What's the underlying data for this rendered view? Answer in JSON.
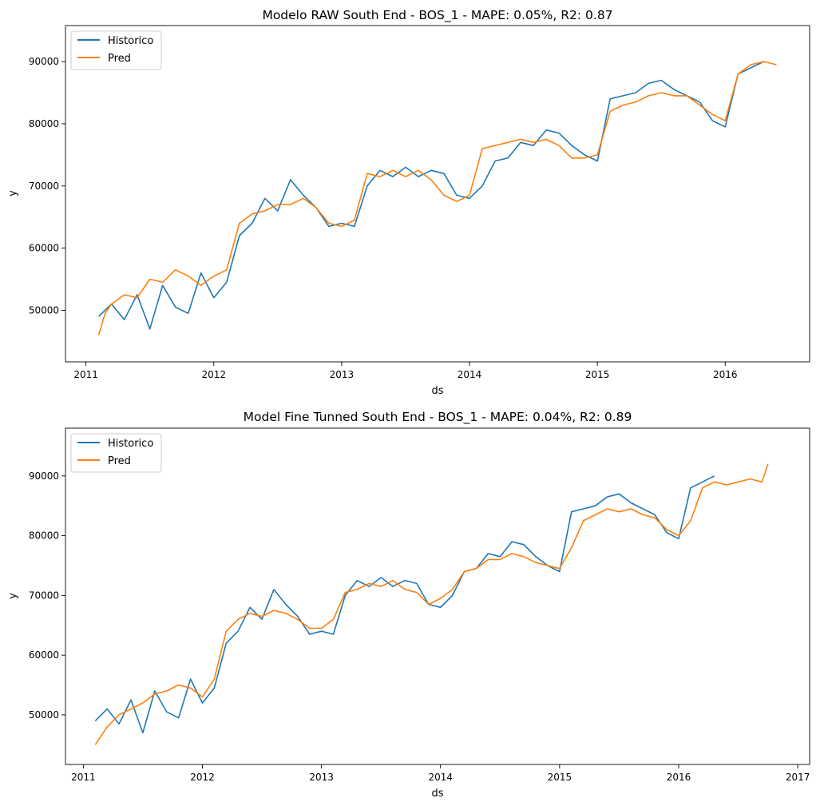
{
  "colors": {
    "historico": "#1f77b4",
    "pred": "#ff7f0e",
    "frame": "#000000",
    "background": "#ffffff"
  },
  "chart_data": [
    {
      "type": "line",
      "title": "Modelo RAW South End - BOS_1 - MAPE: 0.05%, R2: 0.87",
      "xlabel": "ds",
      "ylabel": "y",
      "xlim": [
        2010.84,
        2016.66
      ],
      "ylim": [
        41700,
        95800
      ],
      "x_ticks": [
        2011,
        2012,
        2013,
        2014,
        2015,
        2016
      ],
      "x_tick_labels": [
        "2011",
        "2012",
        "2013",
        "2014",
        "2015",
        "2016"
      ],
      "y_ticks": [
        50000,
        60000,
        70000,
        80000,
        90000
      ],
      "y_tick_labels": [
        "50000",
        "60000",
        "70000",
        "80000",
        "90000"
      ],
      "grid": false,
      "legend_position": "top-left",
      "series": [
        {
          "name": "Historico",
          "color": "#1f77b4",
          "x": [
            2011.1,
            2011.2,
            2011.3,
            2011.4,
            2011.5,
            2011.6,
            2011.7,
            2011.8,
            2011.9,
            2012.0,
            2012.1,
            2012.2,
            2012.3,
            2012.4,
            2012.5,
            2012.6,
            2012.7,
            2012.8,
            2012.9,
            2013.0,
            2013.1,
            2013.2,
            2013.3,
            2013.4,
            2013.5,
            2013.6,
            2013.7,
            2013.8,
            2013.9,
            2014.0,
            2014.1,
            2014.2,
            2014.3,
            2014.4,
            2014.5,
            2014.6,
            2014.7,
            2014.8,
            2014.9,
            2015.0,
            2015.1,
            2015.2,
            2015.3,
            2015.4,
            2015.5,
            2015.6,
            2015.7,
            2015.8,
            2015.9,
            2016.0,
            2016.1,
            2016.2,
            2016.3
          ],
          "y": [
            49000,
            51000,
            48500,
            52500,
            47000,
            54000,
            50500,
            49500,
            56000,
            52000,
            54500,
            62000,
            64000,
            68000,
            66000,
            71000,
            68500,
            66500,
            63500,
            64000,
            63500,
            70000,
            72500,
            71500,
            73000,
            71500,
            72500,
            72000,
            68500,
            68000,
            70000,
            74000,
            74500,
            77000,
            76500,
            79000,
            78500,
            76500,
            75000,
            74000,
            84000,
            84500,
            85000,
            86500,
            87000,
            85500,
            84500,
            83500,
            80500,
            79500,
            88000,
            89000,
            90000
          ]
        },
        {
          "name": "Pred",
          "color": "#ff7f0e",
          "x": [
            2011.1,
            2011.15,
            2011.2,
            2011.3,
            2011.4,
            2011.5,
            2011.6,
            2011.7,
            2011.8,
            2011.9,
            2012.0,
            2012.1,
            2012.2,
            2012.3,
            2012.4,
            2012.5,
            2012.6,
            2012.7,
            2012.8,
            2012.9,
            2013.0,
            2013.1,
            2013.2,
            2013.3,
            2013.4,
            2013.5,
            2013.6,
            2013.7,
            2013.8,
            2013.9,
            2014.0,
            2014.1,
            2014.2,
            2014.3,
            2014.4,
            2014.5,
            2014.6,
            2014.7,
            2014.8,
            2014.9,
            2015.0,
            2015.1,
            2015.2,
            2015.3,
            2015.4,
            2015.5,
            2015.6,
            2015.7,
            2015.8,
            2015.9,
            2016.0,
            2016.1,
            2016.2,
            2016.3,
            2016.4
          ],
          "y": [
            46000,
            49500,
            51000,
            52500,
            52000,
            55000,
            54500,
            56500,
            55500,
            54000,
            55500,
            56500,
            64000,
            65500,
            66000,
            67000,
            67000,
            68000,
            66500,
            64000,
            63500,
            64500,
            72000,
            71500,
            72500,
            71500,
            72500,
            71000,
            68500,
            67500,
            68500,
            76000,
            76500,
            77000,
            77500,
            77000,
            77500,
            76500,
            74500,
            74500,
            75000,
            82000,
            83000,
            83500,
            84500,
            85000,
            84500,
            84500,
            83000,
            81500,
            80500,
            88000,
            89500,
            90000,
            89500
          ]
        }
      ]
    },
    {
      "type": "line",
      "title": "Model Fine Tunned South End - BOS_1 - MAPE: 0.04%, R2: 0.89",
      "xlabel": "ds",
      "ylabel": "y",
      "xlim": [
        2010.85,
        2017.1
      ],
      "ylim": [
        41700,
        98000
      ],
      "x_ticks": [
        2011,
        2012,
        2013,
        2014,
        2015,
        2016,
        2017
      ],
      "x_tick_labels": [
        "2011",
        "2012",
        "2013",
        "2014",
        "2015",
        "2016",
        "2017"
      ],
      "y_ticks": [
        50000,
        60000,
        70000,
        80000,
        90000
      ],
      "y_tick_labels": [
        "50000",
        "60000",
        "70000",
        "80000",
        "90000"
      ],
      "grid": false,
      "legend_position": "top-left",
      "series": [
        {
          "name": "Historico",
          "color": "#1f77b4",
          "x": [
            2011.1,
            2011.2,
            2011.3,
            2011.4,
            2011.5,
            2011.6,
            2011.7,
            2011.8,
            2011.9,
            2012.0,
            2012.1,
            2012.2,
            2012.3,
            2012.4,
            2012.5,
            2012.6,
            2012.7,
            2012.8,
            2012.9,
            2013.0,
            2013.1,
            2013.2,
            2013.3,
            2013.4,
            2013.5,
            2013.6,
            2013.7,
            2013.8,
            2013.9,
            2014.0,
            2014.1,
            2014.2,
            2014.3,
            2014.4,
            2014.5,
            2014.6,
            2014.7,
            2014.8,
            2014.9,
            2015.0,
            2015.1,
            2015.2,
            2015.3,
            2015.4,
            2015.5,
            2015.6,
            2015.7,
            2015.8,
            2015.9,
            2016.0,
            2016.1,
            2016.2,
            2016.3
          ],
          "y": [
            49000,
            51000,
            48500,
            52500,
            47000,
            54000,
            50500,
            49500,
            56000,
            52000,
            54500,
            62000,
            64000,
            68000,
            66000,
            71000,
            68500,
            66500,
            63500,
            64000,
            63500,
            70000,
            72500,
            71500,
            73000,
            71500,
            72500,
            72000,
            68500,
            68000,
            70000,
            74000,
            74500,
            77000,
            76500,
            79000,
            78500,
            76500,
            75000,
            74000,
            84000,
            84500,
            85000,
            86500,
            87000,
            85500,
            84500,
            83500,
            80500,
            79500,
            88000,
            89000,
            90000
          ]
        },
        {
          "name": "Pred",
          "color": "#ff7f0e",
          "x": [
            2011.1,
            2011.2,
            2011.3,
            2011.4,
            2011.5,
            2011.6,
            2011.7,
            2011.8,
            2011.9,
            2012.0,
            2012.1,
            2012.2,
            2012.3,
            2012.4,
            2012.5,
            2012.6,
            2012.7,
            2012.8,
            2012.9,
            2013.0,
            2013.1,
            2013.2,
            2013.3,
            2013.4,
            2013.5,
            2013.6,
            2013.7,
            2013.8,
            2013.9,
            2014.0,
            2014.1,
            2014.2,
            2014.3,
            2014.4,
            2014.5,
            2014.6,
            2014.7,
            2014.8,
            2014.9,
            2015.0,
            2015.1,
            2015.2,
            2015.3,
            2015.4,
            2015.5,
            2015.6,
            2015.7,
            2015.8,
            2015.9,
            2016.0,
            2016.1,
            2016.2,
            2016.3,
            2016.4,
            2016.5,
            2016.6,
            2016.7,
            2016.75
          ],
          "y": [
            45000,
            48000,
            50000,
            51000,
            52000,
            53500,
            54000,
            55000,
            54500,
            53000,
            56000,
            64000,
            66000,
            67000,
            66500,
            67500,
            67000,
            66000,
            64500,
            64500,
            66000,
            70500,
            71000,
            72000,
            71500,
            72500,
            71000,
            70500,
            68500,
            69500,
            71000,
            74000,
            74500,
            76000,
            76000,
            77000,
            76500,
            75500,
            75000,
            74500,
            78000,
            82500,
            83500,
            84500,
            84000,
            84500,
            83500,
            83000,
            81000,
            80000,
            82500,
            88000,
            89000,
            88500,
            89000,
            89500,
            89000,
            92000
          ]
        }
      ]
    }
  ]
}
